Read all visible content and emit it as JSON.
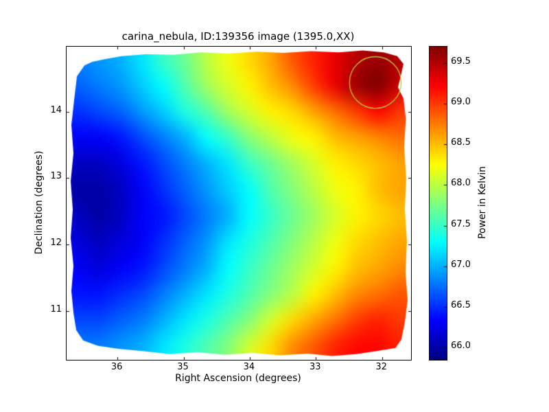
{
  "chart_data": {
    "type": "heatmap",
    "title": "carina_nebula, ID:139356 image (1395.0,XX)",
    "xlabel": "Right Ascension (degrees)",
    "ylabel": "Declination (degrees)",
    "colorbar_label": "Power in Kelvin",
    "colormap": "jet",
    "xlim": [
      36.77,
      31.56
    ],
    "ylim": [
      10.26,
      14.98
    ],
    "x_ticks": [
      36,
      35,
      34,
      33,
      32
    ],
    "x_tick_labels": [
      "36",
      "35",
      "34",
      "33",
      "32"
    ],
    "y_ticks": [
      11,
      12,
      13,
      14
    ],
    "y_tick_labels": [
      "11",
      "12",
      "13",
      "14"
    ],
    "colorbar_ticks": [
      66.0,
      66.5,
      67.0,
      67.5,
      68.0,
      68.5,
      69.0,
      69.5
    ],
    "colorbar_tick_labels": [
      "66.0",
      "66.5",
      "67.0",
      "67.5",
      "68.0",
      "68.5",
      "69.0",
      "69.5"
    ],
    "vmin": 65.85,
    "vmax": 69.7,
    "grid_note": "values[row][col], rows top (Dec 14.9) to bottom (Dec 10.3), cols left (RA 36.7) to right (RA 31.6), units Kelvin",
    "values": [
      [
        66.8,
        66.9,
        67.0,
        67.2,
        67.5,
        67.7,
        68.0,
        68.2,
        68.4,
        68.6,
        68.9,
        69.1,
        69.3,
        69.5,
        69.6,
        69.5
      ],
      [
        66.7,
        66.8,
        66.9,
        67.1,
        67.3,
        67.6,
        67.9,
        68.1,
        68.3,
        68.5,
        68.7,
        69.0,
        69.3,
        69.6,
        69.7,
        69.4
      ],
      [
        66.5,
        66.6,
        66.7,
        66.9,
        67.1,
        67.4,
        67.6,
        67.9,
        68.1,
        68.3,
        68.4,
        68.6,
        68.8,
        69.0,
        69.2,
        69.0
      ],
      [
        66.3,
        66.3,
        66.4,
        66.6,
        66.8,
        67.0,
        67.3,
        67.5,
        67.8,
        68.0,
        68.2,
        68.3,
        68.5,
        68.6,
        68.7,
        68.8
      ],
      [
        66.1,
        66.1,
        66.2,
        66.4,
        66.6,
        66.8,
        67.0,
        67.2,
        67.5,
        67.7,
        67.9,
        68.1,
        68.3,
        68.4,
        68.5,
        68.6
      ],
      [
        66.0,
        66.0,
        66.1,
        66.3,
        66.5,
        66.7,
        66.9,
        67.1,
        67.3,
        67.6,
        67.8,
        68.0,
        68.2,
        68.3,
        68.5,
        68.6
      ],
      [
        66.1,
        66.0,
        66.1,
        66.3,
        66.4,
        66.6,
        66.8,
        67.0,
        67.3,
        67.5,
        67.7,
        67.9,
        68.1,
        68.3,
        68.4,
        68.5
      ],
      [
        66.2,
        66.1,
        66.2,
        66.3,
        66.5,
        66.7,
        66.9,
        67.2,
        67.4,
        67.6,
        67.8,
        68.0,
        68.2,
        68.4,
        68.5,
        68.6
      ],
      [
        66.3,
        66.2,
        66.3,
        66.4,
        66.6,
        66.8,
        67.0,
        67.3,
        67.5,
        67.7,
        67.9,
        68.1,
        68.3,
        68.5,
        68.6,
        68.7
      ],
      [
        66.4,
        66.4,
        66.5,
        66.6,
        66.8,
        67.0,
        67.2,
        67.4,
        67.6,
        67.8,
        68.0,
        68.3,
        68.5,
        68.7,
        68.8,
        68.9
      ],
      [
        66.6,
        66.6,
        66.7,
        66.8,
        67.0,
        67.2,
        67.4,
        67.6,
        67.8,
        68.1,
        68.4,
        68.6,
        68.8,
        69.0,
        69.1,
        69.0
      ],
      [
        66.8,
        66.8,
        66.9,
        67.0,
        67.2,
        67.4,
        67.6,
        67.8,
        68.1,
        68.4,
        68.7,
        68.9,
        69.1,
        69.2,
        69.2,
        69.1
      ]
    ],
    "annotation_circle": {
      "ra": 32.1,
      "dec": 14.44,
      "radius_deg": 0.39,
      "color": "#bcc83c"
    }
  }
}
